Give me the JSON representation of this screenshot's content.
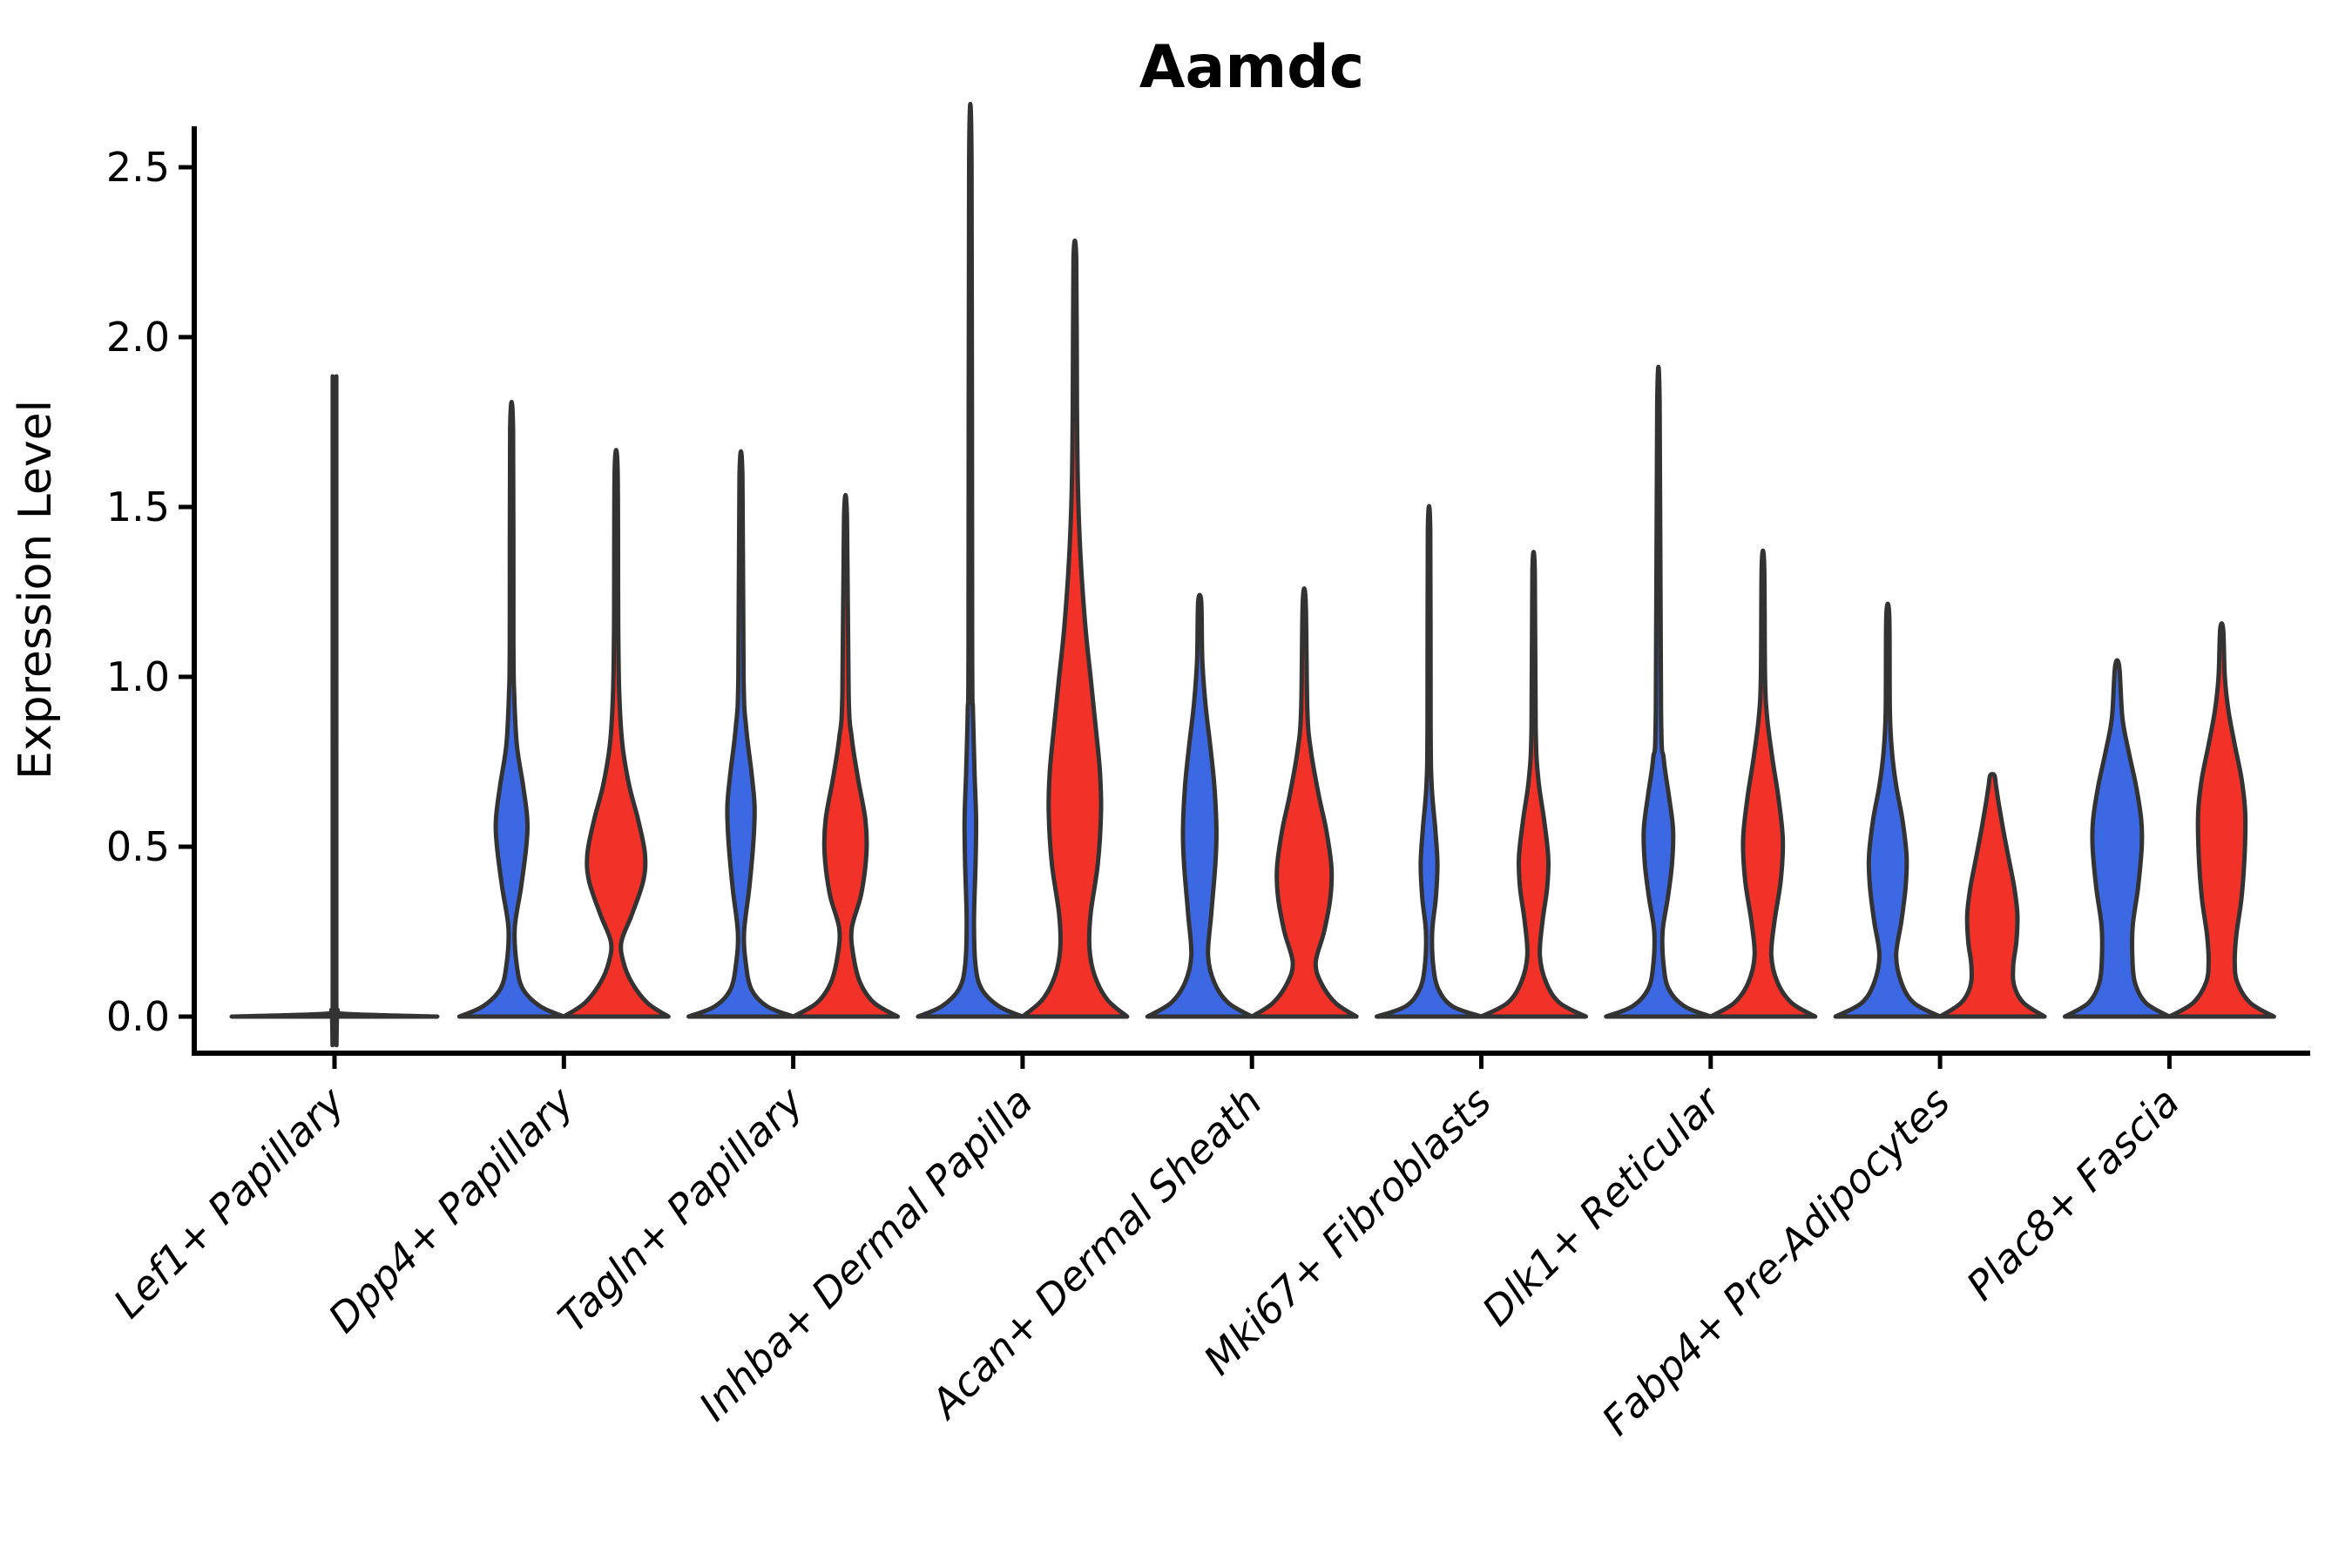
{
  "title": "Aamdc",
  "y_axis": {
    "label": "Expression Level",
    "tick_labels": [
      "0.0",
      "0.5",
      "1.0",
      "1.5",
      "2.0",
      "2.5"
    ]
  },
  "colors": {
    "split_left": "#3D68E3",
    "split_right": "#F23229",
    "violin_outline": "#333333",
    "axis": "#000000",
    "background": "#FFFFFF"
  },
  "chart_data": {
    "type": "violin",
    "title": "Aamdc",
    "ylabel": "Expression Level",
    "ylim": [
      0,
      2.6
    ],
    "yticks": [
      0.0,
      0.5,
      1.0,
      1.5,
      2.0,
      2.5
    ],
    "ytick_labels": [
      "0.0",
      "0.5",
      "1.0",
      "1.5",
      "2.0",
      "2.5"
    ],
    "grid": false,
    "legend": "none",
    "split_colors": {
      "left": "#3D68E3",
      "right": "#F23229"
    },
    "categories": [
      "Lef1+ Papillary",
      "Dpp4+ Papillary",
      "Tagln+ Papillary",
      "Inhba+ Dermal Papilla",
      "Acan+ Dermal Sheath",
      "Mki67+ Fibroblasts",
      "Dlk1+ Reticular",
      "Fabp4+ Pre-Adipocytes",
      "Plac8+ Fascia"
    ],
    "groups": [
      {
        "category": "Lef1+ Papillary",
        "violins": [
          {
            "side": "single",
            "color": "#3D68E3",
            "max": 1.8,
            "profile": [
              [
                0,
                1.0
              ],
              [
                0.008,
                0.1
              ],
              [
                0.02,
                0.03
              ],
              [
                0.05,
                0.018
              ],
              [
                1.74,
                0.018
              ],
              [
                1.8,
                0.014
              ]
            ]
          }
        ]
      },
      {
        "category": "Dpp4+ Papillary",
        "violins": [
          {
            "side": "left",
            "color": "#3D68E3",
            "max": 1.73,
            "profile": [
              [
                0,
                1.0
              ],
              [
                0.03,
                0.55
              ],
              [
                0.08,
                0.22
              ],
              [
                0.15,
                0.1
              ],
              [
                0.26,
                0.06
              ],
              [
                0.38,
                0.18
              ],
              [
                0.5,
                0.28
              ],
              [
                0.58,
                0.3
              ],
              [
                0.68,
                0.22
              ],
              [
                0.8,
                0.1
              ],
              [
                0.95,
                0.05
              ],
              [
                1.1,
                0.035
              ],
              [
                1.73,
                0.028
              ]
            ]
          },
          {
            "side": "right",
            "color": "#F23229",
            "max": 1.61,
            "profile": [
              [
                0,
                1.0
              ],
              [
                0.04,
                0.6
              ],
              [
                0.1,
                0.3
              ],
              [
                0.16,
                0.14
              ],
              [
                0.22,
                0.1
              ],
              [
                0.3,
                0.3
              ],
              [
                0.4,
                0.52
              ],
              [
                0.48,
                0.55
              ],
              [
                0.58,
                0.42
              ],
              [
                0.68,
                0.25
              ],
              [
                0.8,
                0.12
              ],
              [
                0.95,
                0.06
              ],
              [
                1.15,
                0.04
              ],
              [
                1.61,
                0.028
              ]
            ]
          }
        ]
      },
      {
        "category": "Tagln+ Papillary",
        "violins": [
          {
            "side": "left",
            "color": "#3D68E3",
            "max": 1.59,
            "profile": [
              [
                0,
                1.0
              ],
              [
                0.03,
                0.5
              ],
              [
                0.08,
                0.2
              ],
              [
                0.16,
                0.09
              ],
              [
                0.25,
                0.06
              ],
              [
                0.38,
                0.16
              ],
              [
                0.52,
                0.24
              ],
              [
                0.62,
                0.26
              ],
              [
                0.72,
                0.2
              ],
              [
                0.85,
                0.1
              ],
              [
                1.0,
                0.05
              ],
              [
                1.59,
                0.028
              ]
            ]
          },
          {
            "side": "right",
            "color": "#F23229",
            "max": 1.47,
            "profile": [
              [
                0,
                1.0
              ],
              [
                0.04,
                0.55
              ],
              [
                0.1,
                0.28
              ],
              [
                0.18,
                0.15
              ],
              [
                0.26,
                0.12
              ],
              [
                0.36,
                0.3
              ],
              [
                0.48,
                0.4
              ],
              [
                0.58,
                0.38
              ],
              [
                0.7,
                0.24
              ],
              [
                0.82,
                0.12
              ],
              [
                0.95,
                0.06
              ],
              [
                1.47,
                0.028
              ]
            ]
          }
        ]
      },
      {
        "category": "Inhba+ Dermal Papilla",
        "violins": [
          {
            "side": "left",
            "color": "#3D68E3",
            "max": 2.51,
            "profile": [
              [
                0,
                1.0
              ],
              [
                0.03,
                0.55
              ],
              [
                0.08,
                0.22
              ],
              [
                0.15,
                0.1
              ],
              [
                0.28,
                0.07
              ],
              [
                0.45,
                0.1
              ],
              [
                0.58,
                0.11
              ],
              [
                0.72,
                0.08
              ],
              [
                0.9,
                0.05
              ],
              [
                1.1,
                0.035
              ],
              [
                2.51,
                0.024
              ]
            ]
          },
          {
            "side": "right",
            "color": "#F23229",
            "max": 2.23,
            "profile": [
              [
                0,
                1.0
              ],
              [
                0.05,
                0.62
              ],
              [
                0.12,
                0.38
              ],
              [
                0.2,
                0.28
              ],
              [
                0.3,
                0.3
              ],
              [
                0.45,
                0.44
              ],
              [
                0.6,
                0.5
              ],
              [
                0.72,
                0.48
              ],
              [
                0.85,
                0.4
              ],
              [
                1.0,
                0.3
              ],
              [
                1.15,
                0.2
              ],
              [
                1.35,
                0.11
              ],
              [
                1.55,
                0.06
              ],
              [
                1.8,
                0.04
              ],
              [
                2.23,
                0.026
              ]
            ]
          }
        ]
      },
      {
        "category": "Acan+ Dermal Sheath",
        "violins": [
          {
            "side": "left",
            "color": "#3D68E3",
            "max": 1.22,
            "profile": [
              [
                0,
                1.0
              ],
              [
                0.04,
                0.55
              ],
              [
                0.1,
                0.28
              ],
              [
                0.18,
                0.16
              ],
              [
                0.3,
                0.22
              ],
              [
                0.45,
                0.3
              ],
              [
                0.55,
                0.32
              ],
              [
                0.68,
                0.28
              ],
              [
                0.8,
                0.2
              ],
              [
                0.92,
                0.11
              ],
              [
                1.05,
                0.05
              ],
              [
                1.22,
                0.03
              ]
            ]
          },
          {
            "side": "right",
            "color": "#F23229",
            "max": 1.22,
            "profile": [
              [
                0,
                1.0
              ],
              [
                0.04,
                0.6
              ],
              [
                0.1,
                0.32
              ],
              [
                0.16,
                0.22
              ],
              [
                0.25,
                0.38
              ],
              [
                0.35,
                0.5
              ],
              [
                0.44,
                0.52
              ],
              [
                0.55,
                0.42
              ],
              [
                0.65,
                0.28
              ],
              [
                0.78,
                0.13
              ],
              [
                0.9,
                0.06
              ],
              [
                1.22,
                0.028
              ]
            ]
          }
        ]
      },
      {
        "category": "Mki67+ Fibroblasts",
        "violins": [
          {
            "side": "left",
            "color": "#3D68E3",
            "max": 1.43,
            "profile": [
              [
                0,
                1.0
              ],
              [
                0.03,
                0.45
              ],
              [
                0.08,
                0.18
              ],
              [
                0.15,
                0.08
              ],
              [
                0.25,
                0.06
              ],
              [
                0.35,
                0.13
              ],
              [
                0.45,
                0.16
              ],
              [
                0.55,
                0.12
              ],
              [
                0.68,
                0.05
              ],
              [
                0.85,
                0.03
              ],
              [
                1.43,
                0.024
              ]
            ]
          },
          {
            "side": "right",
            "color": "#F23229",
            "max": 1.31,
            "profile": [
              [
                0,
                1.0
              ],
              [
                0.04,
                0.5
              ],
              [
                0.1,
                0.24
              ],
              [
                0.18,
                0.12
              ],
              [
                0.28,
                0.17
              ],
              [
                0.38,
                0.26
              ],
              [
                0.47,
                0.28
              ],
              [
                0.58,
                0.2
              ],
              [
                0.7,
                0.09
              ],
              [
                0.85,
                0.04
              ],
              [
                1.31,
                0.024
              ]
            ]
          }
        ]
      },
      {
        "category": "Dlk1+ Reticular",
        "violins": [
          {
            "side": "left",
            "color": "#3D68E3",
            "max": 1.8,
            "profile": [
              [
                0,
                1.0
              ],
              [
                0.03,
                0.5
              ],
              [
                0.08,
                0.2
              ],
              [
                0.15,
                0.1
              ],
              [
                0.25,
                0.08
              ],
              [
                0.35,
                0.18
              ],
              [
                0.45,
                0.26
              ],
              [
                0.55,
                0.28
              ],
              [
                0.65,
                0.2
              ],
              [
                0.76,
                0.1
              ],
              [
                0.9,
                0.05
              ],
              [
                1.8,
                0.024
              ]
            ]
          },
          {
            "side": "right",
            "color": "#F23229",
            "max": 1.33,
            "profile": [
              [
                0,
                1.0
              ],
              [
                0.04,
                0.55
              ],
              [
                0.1,
                0.28
              ],
              [
                0.18,
                0.16
              ],
              [
                0.28,
                0.22
              ],
              [
                0.4,
                0.34
              ],
              [
                0.52,
                0.38
              ],
              [
                0.64,
                0.3
              ],
              [
                0.76,
                0.18
              ],
              [
                0.88,
                0.08
              ],
              [
                1.0,
                0.04
              ],
              [
                1.33,
                0.024
              ]
            ]
          }
        ]
      },
      {
        "category": "Fabp4+ Pre-Adipocytes",
        "violins": [
          {
            "side": "left",
            "color": "#3D68E3",
            "max": 1.18,
            "profile": [
              [
                0,
                1.0
              ],
              [
                0.04,
                0.5
              ],
              [
                0.1,
                0.26
              ],
              [
                0.18,
                0.16
              ],
              [
                0.28,
                0.26
              ],
              [
                0.38,
                0.34
              ],
              [
                0.47,
                0.36
              ],
              [
                0.58,
                0.28
              ],
              [
                0.68,
                0.16
              ],
              [
                0.78,
                0.08
              ],
              [
                0.9,
                0.04
              ],
              [
                1.18,
                0.028
              ]
            ]
          },
          {
            "side": "right",
            "color": "#F23229",
            "max": 0.71,
            "profile": [
              [
                0,
                1.0
              ],
              [
                0.04,
                0.6
              ],
              [
                0.09,
                0.42
              ],
              [
                0.15,
                0.4
              ],
              [
                0.22,
                0.46
              ],
              [
                0.3,
                0.48
              ],
              [
                0.38,
                0.42
              ],
              [
                0.46,
                0.32
              ],
              [
                0.54,
                0.22
              ],
              [
                0.62,
                0.13
              ],
              [
                0.68,
                0.07
              ],
              [
                0.71,
                0.04
              ]
            ]
          }
        ]
      },
      {
        "category": "Plac8+ Fascia",
        "violins": [
          {
            "side": "left",
            "color": "#3D68E3",
            "max": 1.03,
            "profile": [
              [
                0,
                1.0
              ],
              [
                0.04,
                0.55
              ],
              [
                0.1,
                0.34
              ],
              [
                0.18,
                0.29
              ],
              [
                0.27,
                0.3
              ],
              [
                0.38,
                0.4
              ],
              [
                0.5,
                0.47
              ],
              [
                0.58,
                0.46
              ],
              [
                0.68,
                0.36
              ],
              [
                0.78,
                0.22
              ],
              [
                0.88,
                0.1
              ],
              [
                1.03,
                0.04
              ]
            ]
          },
          {
            "side": "right",
            "color": "#F23229",
            "max": 1.14,
            "profile": [
              [
                0,
                1.0
              ],
              [
                0.04,
                0.55
              ],
              [
                0.1,
                0.3
              ],
              [
                0.16,
                0.25
              ],
              [
                0.24,
                0.28
              ],
              [
                0.35,
                0.38
              ],
              [
                0.48,
                0.44
              ],
              [
                0.6,
                0.45
              ],
              [
                0.7,
                0.38
              ],
              [
                0.8,
                0.25
              ],
              [
                0.9,
                0.13
              ],
              [
                1.0,
                0.06
              ],
              [
                1.14,
                0.028
              ]
            ]
          }
        ]
      }
    ]
  }
}
